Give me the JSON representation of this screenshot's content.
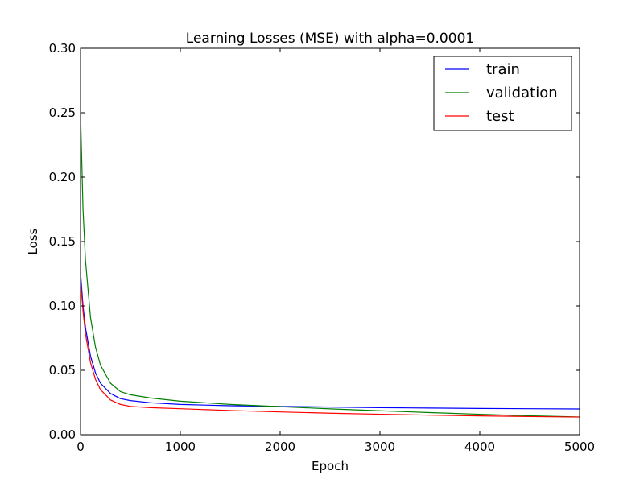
{
  "chart_data": {
    "type": "line",
    "title": "Learning Losses (MSE) with alpha=0.0001",
    "xlabel": "Epoch",
    "ylabel": "Loss",
    "xlim": [
      0,
      5000
    ],
    "ylim": [
      0,
      0.3
    ],
    "x_ticks": [
      0,
      1000,
      2000,
      3000,
      4000,
      5000
    ],
    "x_tick_labels": [
      "0",
      "1000",
      "2000",
      "3000",
      "4000",
      "5000"
    ],
    "y_ticks": [
      0,
      0.05,
      0.1,
      0.15,
      0.2,
      0.25,
      0.3
    ],
    "y_tick_labels": [
      "0.00",
      "0.05",
      "0.10",
      "0.15",
      "0.20",
      "0.25",
      "0.30"
    ],
    "grid": false,
    "legend_position": "top-right",
    "x": [
      0,
      25,
      50,
      100,
      150,
      200,
      300,
      400,
      500,
      700,
      1000,
      1500,
      2000,
      2500,
      3000,
      3500,
      4000,
      4500,
      5000
    ],
    "series": [
      {
        "name": "train",
        "color": "#0000ff",
        "values": [
          0.126,
          0.1,
          0.083,
          0.061,
          0.048,
          0.04,
          0.032,
          0.028,
          0.0265,
          0.0248,
          0.0235,
          0.0225,
          0.022,
          0.0215,
          0.021,
          0.0207,
          0.0204,
          0.0202,
          0.02
        ]
      },
      {
        "name": "validation",
        "color": "#008000",
        "values": [
          0.25,
          0.175,
          0.135,
          0.091,
          0.068,
          0.054,
          0.04,
          0.0335,
          0.031,
          0.0285,
          0.026,
          0.0235,
          0.0218,
          0.0201,
          0.0186,
          0.0172,
          0.0159,
          0.0147,
          0.0138
        ]
      },
      {
        "name": "test",
        "color": "#ff0000",
        "values": [
          0.12,
          0.096,
          0.078,
          0.056,
          0.043,
          0.035,
          0.027,
          0.0235,
          0.022,
          0.021,
          0.0202,
          0.0188,
          0.0177,
          0.0167,
          0.0159,
          0.0152,
          0.0146,
          0.0141,
          0.0137
        ]
      }
    ]
  }
}
